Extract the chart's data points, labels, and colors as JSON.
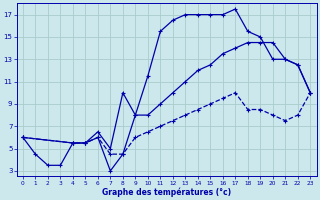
{
  "xlabel": "Graphe des températures (°c)",
  "bg_color": "#cce8ec",
  "grid_color": "#aacccc",
  "line_color": "#0000aa",
  "xlim": [
    -0.5,
    23.5
  ],
  "ylim": [
    2.5,
    18
  ],
  "yticks": [
    3,
    5,
    7,
    9,
    11,
    13,
    15,
    17
  ],
  "xticks": [
    0,
    1,
    2,
    3,
    4,
    5,
    6,
    7,
    8,
    9,
    10,
    11,
    12,
    13,
    14,
    15,
    16,
    17,
    18,
    19,
    20,
    21,
    22,
    23
  ],
  "series1_x": [
    0,
    1,
    2,
    3,
    4,
    5,
    6,
    7,
    8,
    9,
    10,
    11,
    12,
    13,
    14,
    15,
    16,
    17,
    18,
    19,
    20,
    21,
    22,
    23
  ],
  "series1_y": [
    6,
    4.5,
    3.5,
    3.5,
    5.5,
    5.5,
    6.0,
    3.0,
    4.5,
    8.0,
    11.5,
    15.5,
    16.5,
    17.0,
    17.0,
    17.0,
    17.0,
    17.5,
    15.5,
    15.0,
    13.0,
    13.0,
    12.5,
    10.0
  ],
  "series2_x": [
    0,
    4,
    5,
    6,
    7,
    8,
    9,
    10,
    11,
    12,
    13,
    14,
    15,
    16,
    17,
    18,
    19,
    20,
    21,
    22,
    23
  ],
  "series2_y": [
    6,
    5.5,
    5.5,
    6.5,
    5.0,
    10.0,
    8.0,
    8.0,
    9.0,
    10.0,
    11.0,
    12.0,
    12.5,
    13.5,
    14.0,
    14.5,
    14.5,
    14.5,
    13.0,
    12.5,
    10.0
  ],
  "series3_x": [
    0,
    4,
    5,
    6,
    7,
    8,
    9,
    10,
    11,
    12,
    13,
    14,
    15,
    16,
    17,
    18,
    19,
    20,
    21,
    22,
    23
  ],
  "series3_y": [
    6,
    5.5,
    5.5,
    6.0,
    4.5,
    4.5,
    6.0,
    6.5,
    7.0,
    7.5,
    8.0,
    8.5,
    9.0,
    9.5,
    10.0,
    8.5,
    8.5,
    8.0,
    7.5,
    8.0,
    10.0
  ]
}
